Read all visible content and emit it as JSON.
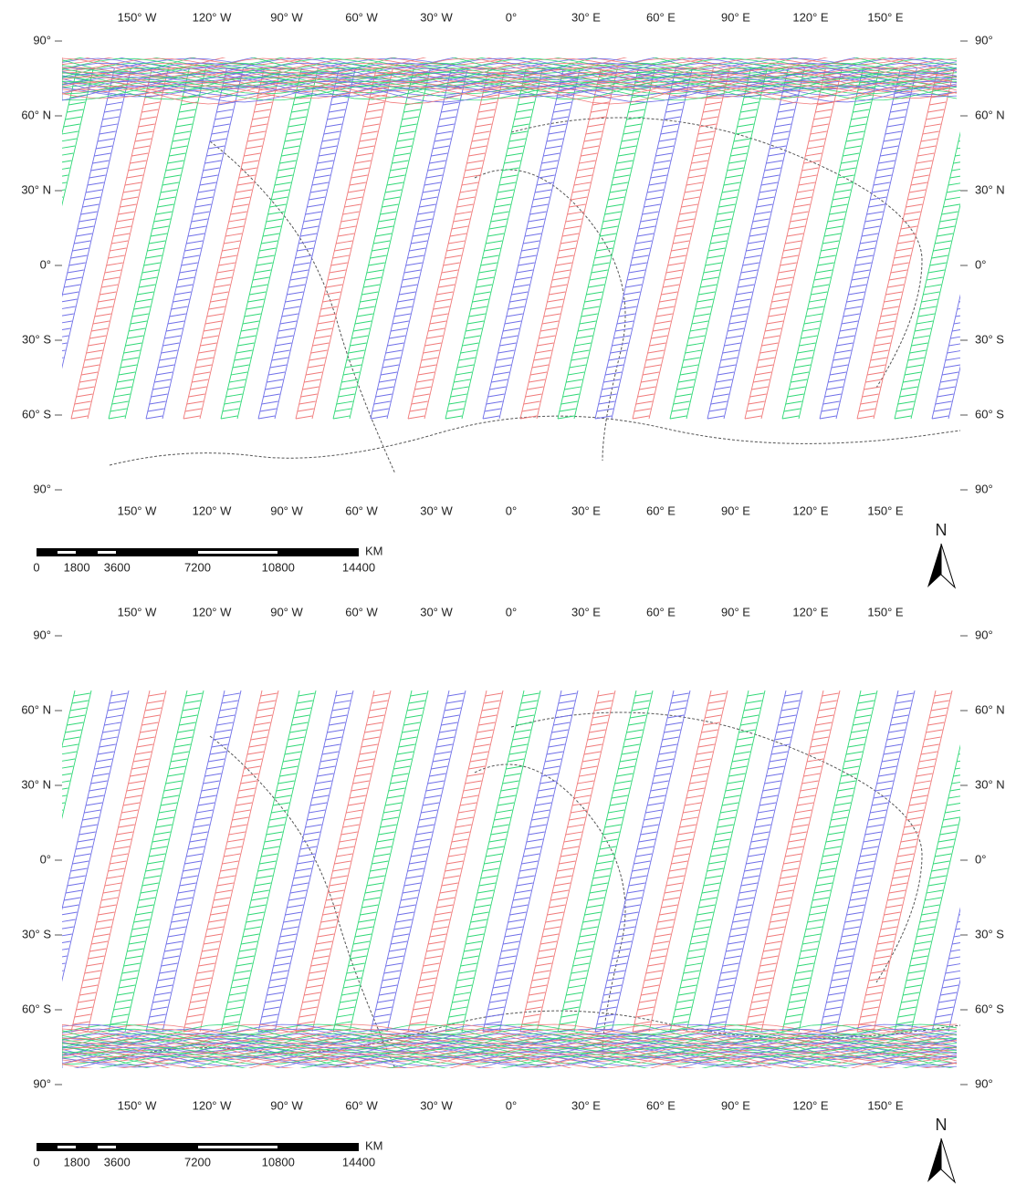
{
  "panels": [
    {
      "lon_labels": [
        "150° W",
        "120° W",
        "90° W",
        "60° W",
        "30° W",
        "0°",
        "30° E",
        "60° E",
        "90° E",
        "120° E",
        "150° E"
      ],
      "lat_left": [
        "90°",
        "60° N",
        "30° N",
        "0°",
        "30° S",
        "60° S",
        "90°"
      ],
      "lat_right": [
        "90°",
        "60° N",
        "30° N",
        "0°",
        "30° S",
        "60° S",
        "90°"
      ],
      "scale_bar": {
        "unit": "KM",
        "labels": [
          0,
          1800,
          3600,
          7200,
          10800,
          14400
        ]
      },
      "north_arrow": "N"
    },
    {
      "lon_labels": [
        "150° W",
        "120° W",
        "90° W",
        "60° W",
        "30° W",
        "0°",
        "30° E",
        "60° E",
        "90° E",
        "120° E",
        "150° E"
      ],
      "lat_left": [
        "90°",
        "60° N",
        "30° N",
        "0°",
        "30° S",
        "60° S",
        "90°"
      ],
      "lat_right": [
        "90°",
        "60° N",
        "30° N",
        "0°",
        "30° S",
        "60° S",
        "90°"
      ],
      "scale_bar": {
        "unit": "KM",
        "labels": [
          0,
          1800,
          3600,
          7200,
          10800,
          14400
        ]
      },
      "north_arrow": "N"
    }
  ]
}
